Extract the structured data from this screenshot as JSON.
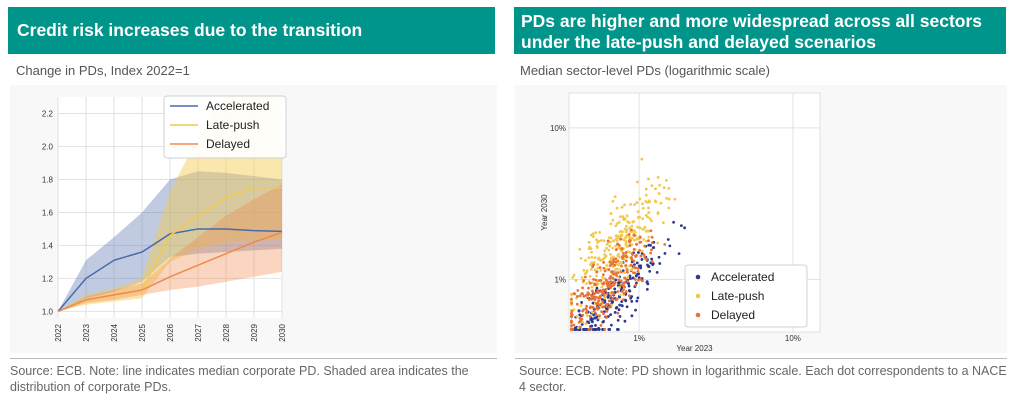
{
  "left": {
    "header": "Credit risk increases due to the transition",
    "subtitle": "Change in PDs, Index 2022=1",
    "note": "Source: ECB. Note: line indicates median corporate PD. Shaded area indicates the distribution of corporate PDs."
  },
  "right": {
    "header": "PDs are higher and more widespread across all sectors under the late-push and delayed scenarios",
    "subtitle": "Median sector-level PDs (logarithmic scale)",
    "note": "Source: ECB. Note: PD shown in logarithmic scale. Each dot correspondents to a NACE 4 sector."
  },
  "chart_data": [
    {
      "type": "line",
      "title": "",
      "xlabel": "",
      "ylabel": "",
      "x": [
        "2022",
        "2023",
        "2024",
        "2025",
        "2026",
        "2027",
        "2028",
        "2029",
        "2030"
      ],
      "ylim": [
        0.96,
        2.3
      ],
      "yticks": [
        "1.0",
        "1.2",
        "1.4",
        "1.6",
        "1.8",
        "2.0",
        "2.2"
      ],
      "grid": true,
      "legend": "top-center",
      "series": [
        {
          "name": "Accelerated",
          "color": "#4a6aad",
          "values": [
            1.0,
            1.2,
            1.31,
            1.36,
            1.47,
            1.5,
            1.5,
            1.49,
            1.485
          ],
          "band_low": [
            1.0,
            1.08,
            1.12,
            1.18,
            1.33,
            1.35,
            1.36,
            1.37,
            1.38
          ],
          "band_high": [
            1.0,
            1.31,
            1.45,
            1.6,
            1.8,
            1.85,
            1.84,
            1.82,
            1.8
          ]
        },
        {
          "name": "Late-push",
          "color": "#f2c94c",
          "values": [
            1.0,
            1.07,
            1.1,
            1.13,
            1.46,
            1.58,
            1.69,
            1.75,
            1.75
          ],
          "band_low": [
            1.0,
            1.04,
            1.06,
            1.08,
            1.3,
            1.38,
            1.42,
            1.43,
            1.44
          ],
          "band_high": [
            1.0,
            1.1,
            1.14,
            1.2,
            1.73,
            2.05,
            2.3,
            2.3,
            2.3
          ]
        },
        {
          "name": "Delayed",
          "color": "#f08a4b",
          "values": [
            1.0,
            1.07,
            1.1,
            1.13,
            1.21,
            1.28,
            1.35,
            1.42,
            1.48
          ],
          "band_low": [
            1.0,
            1.05,
            1.07,
            1.1,
            1.13,
            1.15,
            1.18,
            1.21,
            1.24
          ],
          "band_high": [
            1.0,
            1.09,
            1.13,
            1.17,
            1.32,
            1.45,
            1.58,
            1.68,
            1.77
          ]
        }
      ]
    },
    {
      "type": "scatter",
      "title": "",
      "xlabel": "Year 2023",
      "ylabel": "Year 2030",
      "xscale": "log",
      "yscale": "log",
      "xticks": [
        "1%",
        "10%"
      ],
      "yticks": [
        "1%",
        "10%"
      ],
      "xlim": [
        0.0035,
        0.15
      ],
      "ylim": [
        0.0045,
        0.17
      ],
      "grid": true,
      "legend": "bottom-right",
      "series": [
        {
          "name": "Accelerated",
          "color": "#2b3a8c"
        },
        {
          "name": "Late-push",
          "color": "#f2c94c"
        },
        {
          "name": "Delayed",
          "color": "#e8723a"
        }
      ]
    }
  ]
}
